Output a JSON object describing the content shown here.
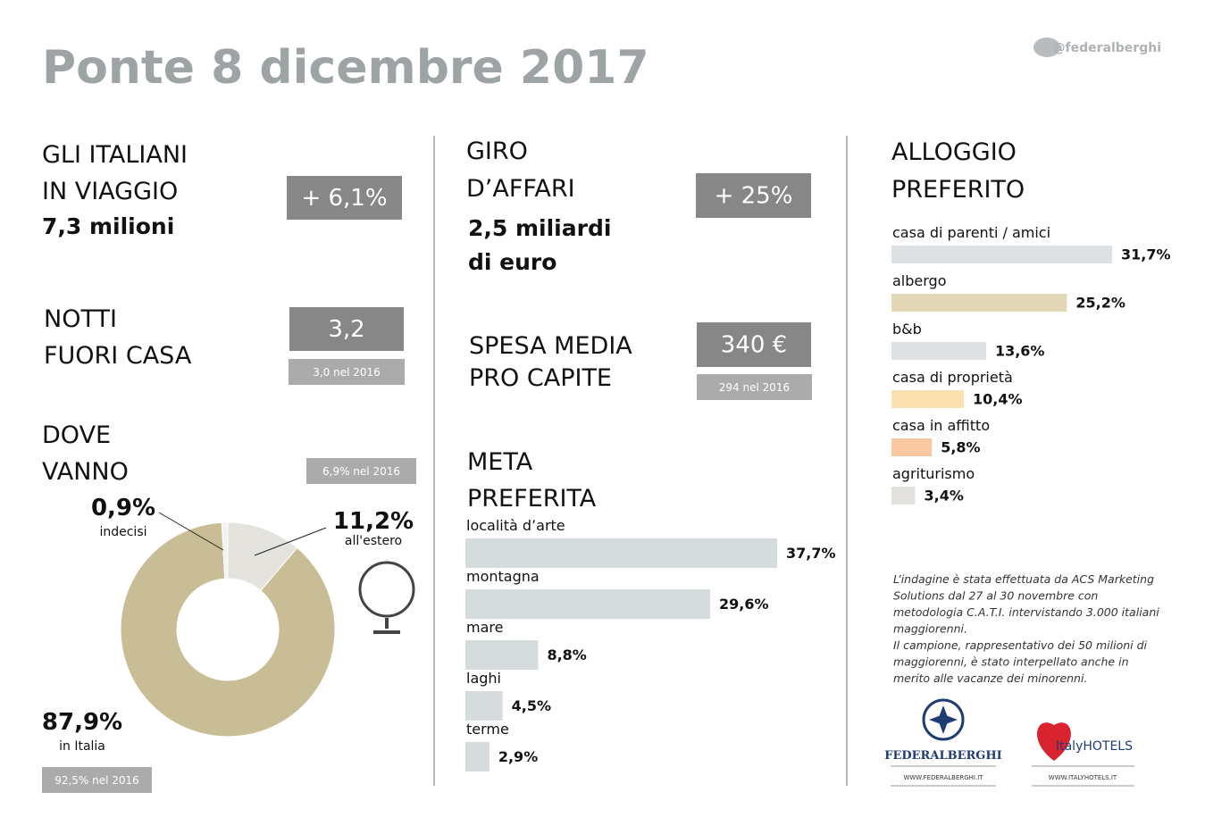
{
  "title": "Ponte 8 dicembre 2017",
  "handle": "@federalberghi",
  "travelers": {
    "heading": [
      "GLI ITALIANI",
      "IN VIAGGIO"
    ],
    "value": "7,3 milioni",
    "change": "+ 6,1%"
  },
  "nights": {
    "heading": [
      "NOTTI",
      "FUORI CASA"
    ],
    "value": "3,2",
    "previous": "3,0 nel 2016"
  },
  "turnover": {
    "heading": [
      "GIRO",
      "D’AFFARI"
    ],
    "value": [
      "2,5 miliardi",
      "di euro"
    ],
    "change": "+ 25%"
  },
  "spending": {
    "heading": [
      "SPESA MEDIA",
      "PRO CAPITE"
    ],
    "value": "340 €",
    "previous": "294 nel 2016"
  },
  "note": [
    "L’indagine è stata effettuata da ACS Marketing",
    "Solutions dal 27 al 30 novembre con",
    "metodologia C.A.T.I. intervistando 3.000 italiani",
    "maggiorenni.",
    "Il campione, rappresentativo dei 50 milioni di",
    "maggiorenni, è stato interpellato anche in",
    "merito alle vacanze dei minorenni."
  ],
  "logos": {
    "federalberghi": "FEDERALBERGHI",
    "federalberghi_url": "WWW.FEDERALBERGHI.IT",
    "italyhotels": "ItalyHOTELS",
    "italyhotels_url": "WWW.ITALYHOTELS.IT"
  },
  "chart_data": [
    {
      "type": "donut",
      "title": [
        "DOVE",
        "VANNO"
      ],
      "categories": [
        "all'estero",
        "in Italia",
        "indecisi"
      ],
      "values": [
        11.2,
        87.9,
        0.9
      ],
      "value_labels": [
        "11,2%",
        "87,9%",
        "0,9%"
      ],
      "colors": [
        "#e4e3de",
        "#c9bd96",
        "#f2f2f2"
      ],
      "previous": [
        "6,9% nel 2016",
        "92,5% nel 2016"
      ]
    },
    {
      "type": "bar",
      "title": [
        "META",
        "PREFERITA"
      ],
      "categories": [
        "località d’arte",
        "montagna",
        "mare",
        "laghi",
        "terme"
      ],
      "values": [
        37.7,
        29.6,
        8.8,
        4.5,
        2.9
      ],
      "value_labels": [
        "37,7%",
        "29,6%",
        "8,8%",
        "4,5%",
        "2,9%"
      ],
      "color": "#d6dbde"
    },
    {
      "type": "bar",
      "title": [
        "ALLOGGIO",
        "PREFERITO"
      ],
      "categories": [
        "casa di parenti / amici",
        "albergo",
        "b&b",
        "casa di proprietà",
        "casa in affitto",
        "agriturismo"
      ],
      "values": [
        31.7,
        25.2,
        13.6,
        10.4,
        5.8,
        3.4
      ],
      "value_labels": [
        "31,7%",
        "25,2%",
        "13,6%",
        "10,4%",
        "5,8%",
        "3,4%"
      ],
      "colors": [
        "#dee1e4",
        "#e2d8b8",
        "#dee1e4",
        "#fbe1b0",
        "#f9c8a0",
        "#e3e1dd"
      ]
    }
  ]
}
